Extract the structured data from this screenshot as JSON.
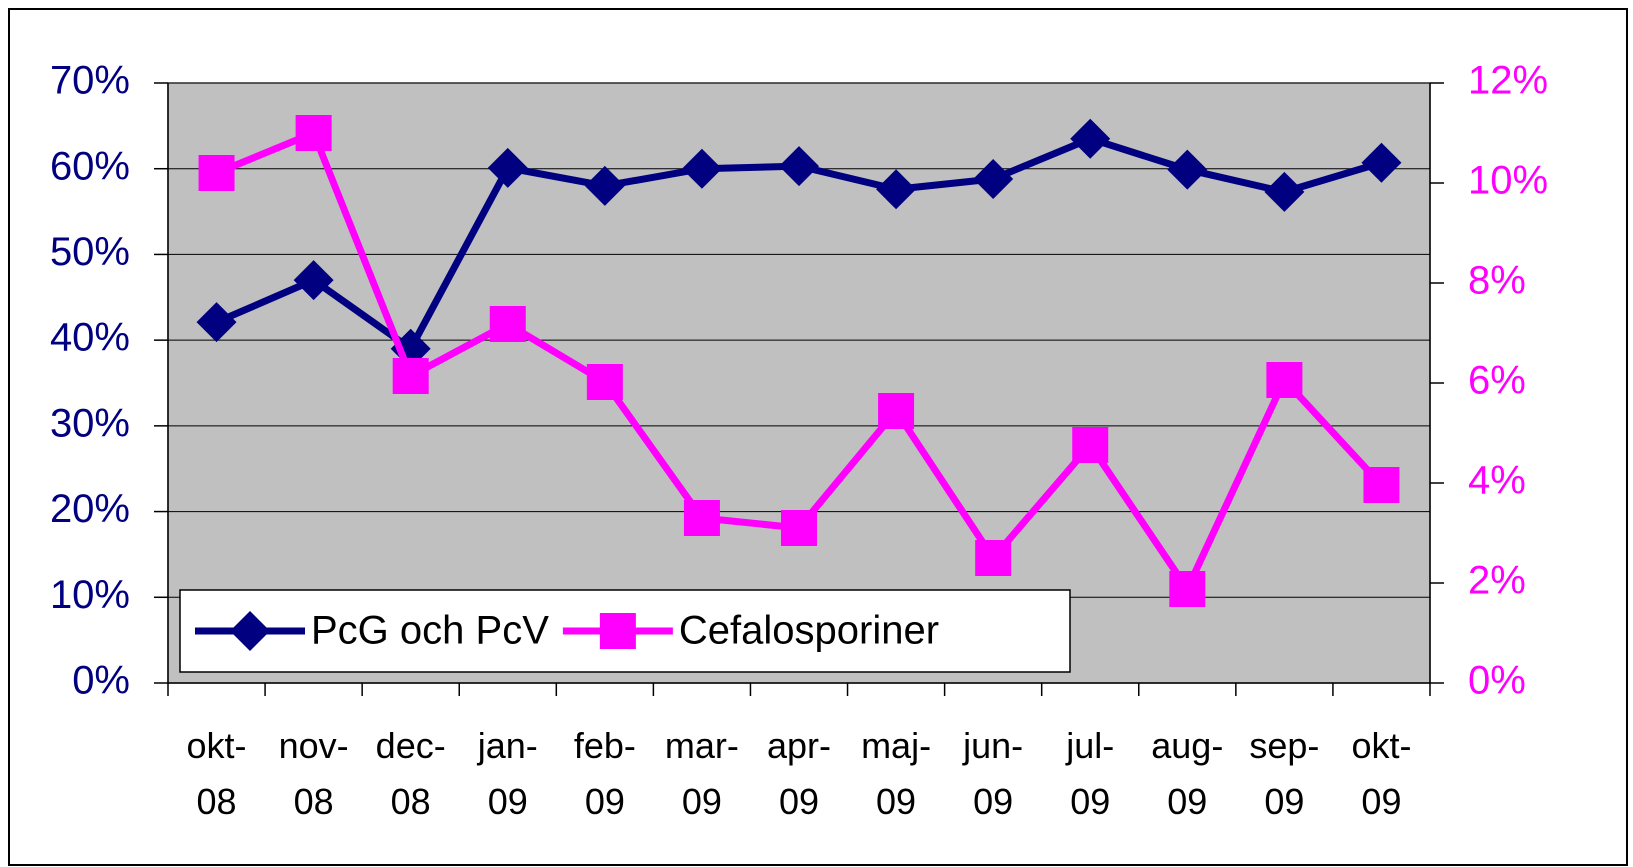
{
  "chart_data": {
    "type": "line",
    "categories": [
      "okt-08",
      "nov-08",
      "dec-08",
      "jan-09",
      "feb-09",
      "mar-09",
      "apr-09",
      "maj-09",
      "jun-09",
      "jul-09",
      "aug-09",
      "sep-09",
      "okt-09"
    ],
    "series": [
      {
        "name": "PcG och PcV",
        "color": "#000080",
        "marker": "diamond",
        "values": [
          42.1,
          47,
          39,
          60.1,
          58,
          60,
          60.3,
          57.6,
          58.8,
          63.5,
          59.9,
          57.3,
          60.7
        ]
      },
      {
        "name": "Cefalosporiner",
        "color": "#ff00ff",
        "marker": "square",
        "axis": "y2",
        "values": [
          10.2,
          11,
          6.14,
          7.18,
          6.02,
          3.3,
          3.1,
          5.44,
          2.5,
          4.76,
          1.88,
          6.06,
          3.96
        ]
      }
    ],
    "ylim": [
      0,
      70
    ],
    "yticks": [
      {
        "value": 0,
        "label": "0%"
      },
      {
        "value": 10,
        "label": "10%"
      },
      {
        "value": 20,
        "label": "20%"
      },
      {
        "value": 30,
        "label": "30%"
      },
      {
        "value": 40,
        "label": "40%"
      },
      {
        "value": 50,
        "label": "50%"
      },
      {
        "value": 60,
        "label": "60%"
      },
      {
        "value": 70,
        "label": "70%"
      }
    ],
    "y2lim": [
      0,
      12
    ],
    "y2ticks": [
      {
        "value": 0,
        "label": "0%"
      },
      {
        "value": 2,
        "label": "2%"
      },
      {
        "value": 4,
        "label": "4%"
      },
      {
        "value": 6,
        "label": "6%"
      },
      {
        "value": 8,
        "label": "8%"
      },
      {
        "value": 10,
        "label": "10%"
      },
      {
        "value": 12,
        "label": "12%"
      }
    ],
    "grid": true,
    "legend": "lower left",
    "background": "#c0c0c0"
  }
}
